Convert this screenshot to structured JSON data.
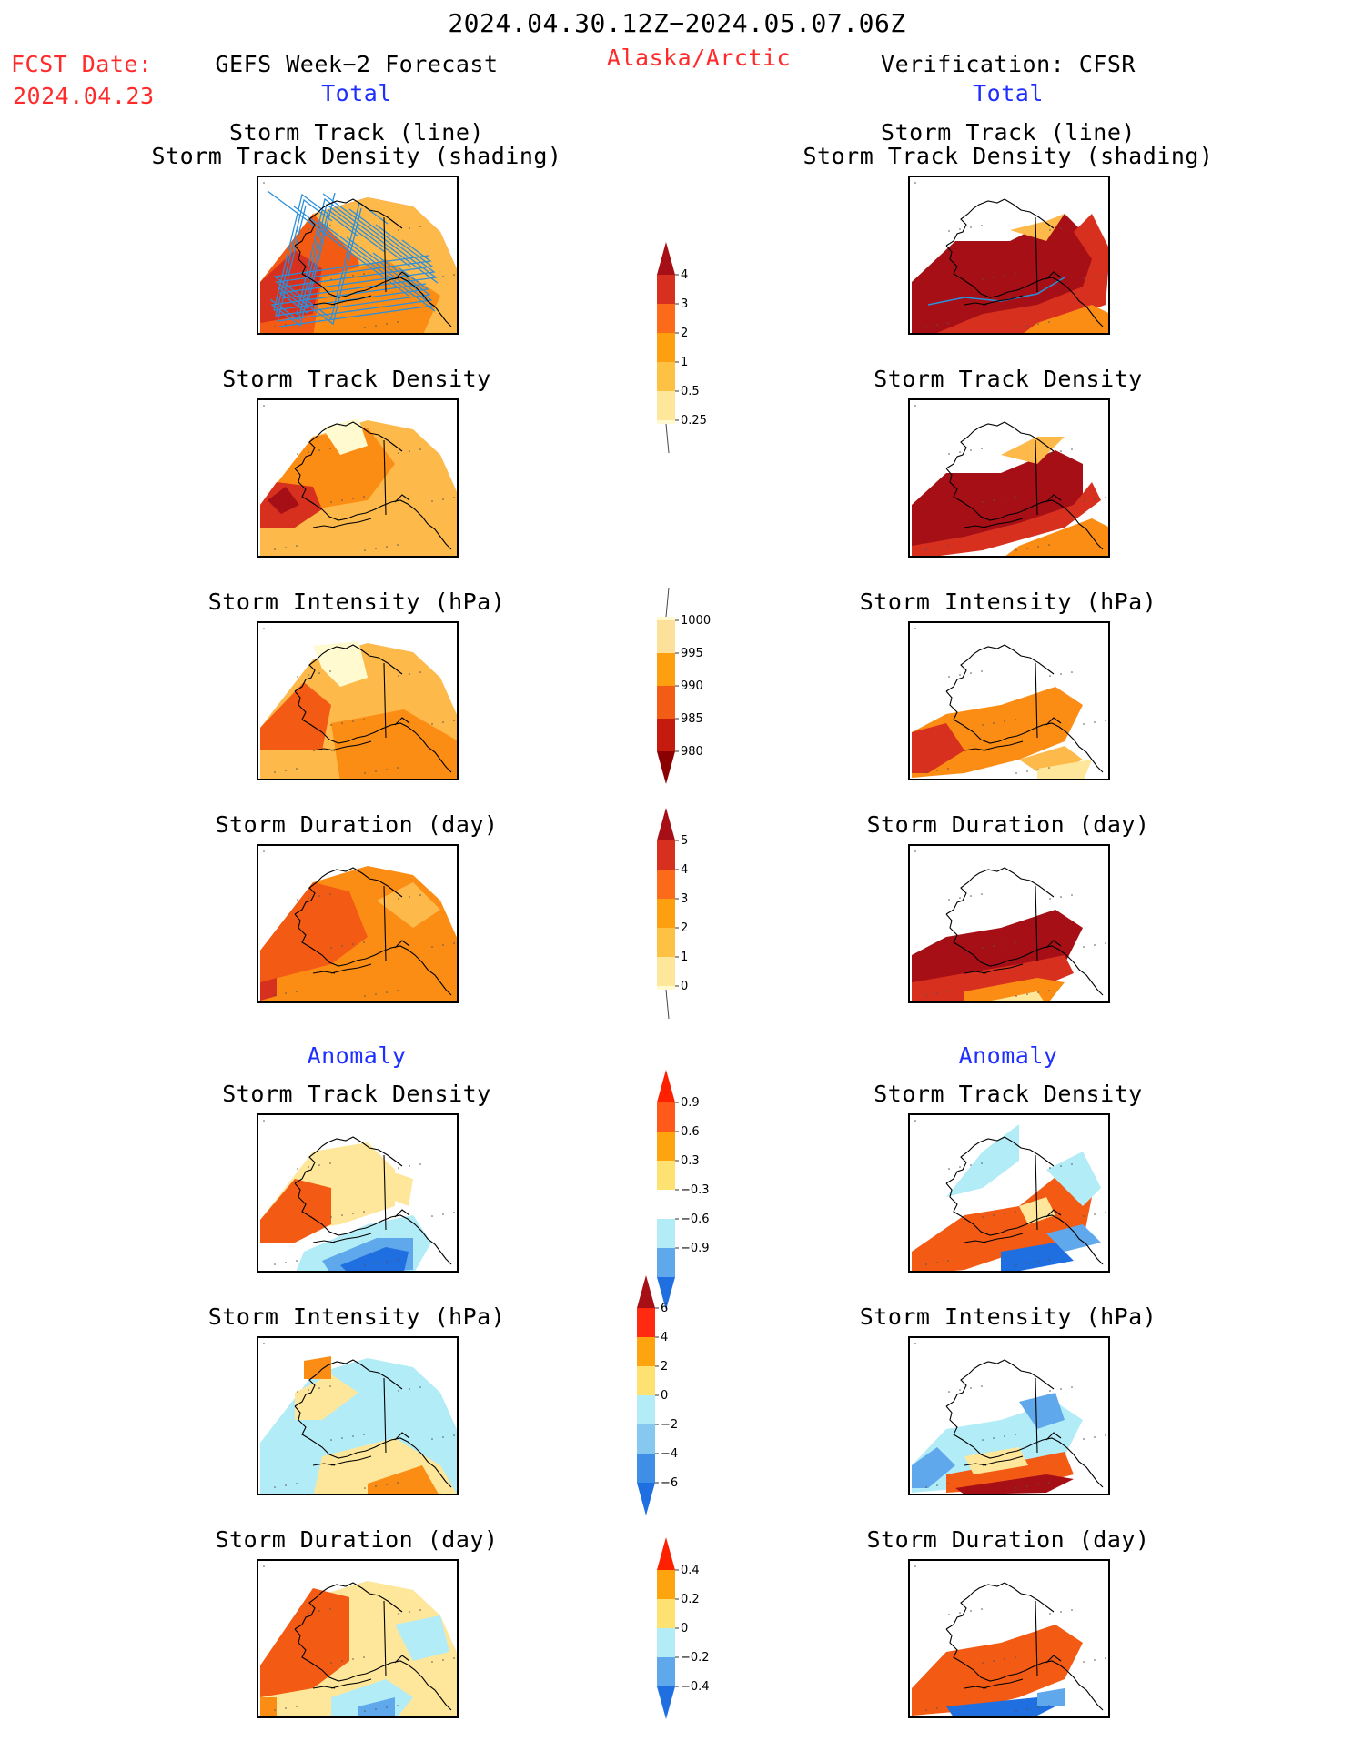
{
  "header": {
    "period": "2024.04.30.12Z−2024.05.07.06Z",
    "fcst_label": "FCST Date:",
    "fcst_date": "2024.04.23",
    "left_title": "GEFS Week−2 Forecast",
    "region": "Alaska/Arctic",
    "right_title": "Verification: CFSR",
    "left_total": "Total",
    "right_total": "Total"
  },
  "sections": {
    "anomaly_left": "Anomaly",
    "anomaly_right": "Anomaly"
  },
  "panel_titles": {
    "track_line": "Storm Track (line)",
    "track_shading": "Storm Track Density (shading)",
    "density": "Storm Track Density",
    "intensity": "Storm Intensity (hPa)",
    "duration": "Storm Duration (day)"
  },
  "colorbars": {
    "density_total": {
      "ticks": [
        "4",
        "3",
        "2",
        "1",
        "0.5",
        "0.25"
      ],
      "colors": [
        "#a50f15",
        "#d7301f",
        "#fc6b1a",
        "#fe9f0f",
        "#fdc144",
        "#fee79a",
        "#fffad0"
      ]
    },
    "intensity_total": {
      "ticks": [
        "1000",
        "995",
        "990",
        "985",
        "980"
      ],
      "colors": [
        "#fffad0",
        "#fde19a",
        "#fe9f0f",
        "#f25c14",
        "#c51b0f",
        "#8b0000"
      ]
    },
    "duration_total": {
      "ticks": [
        "5",
        "4",
        "3",
        "2",
        "1",
        "0"
      ],
      "colors": [
        "#a50f15",
        "#d7301f",
        "#fc6b1a",
        "#fe9f0f",
        "#fdc144",
        "#fee79a",
        "#fffad0"
      ]
    },
    "density_anom": {
      "ticks": [
        "0.9",
        "0.6",
        "0.3",
        "−0.3",
        "−0.6",
        "−0.9"
      ],
      "colors": [
        "#ff2000",
        "#ff5a1a",
        "#fea40f",
        "#fde272",
        "#ffffff",
        "#b2ecf7",
        "#5fa8ec",
        "#1f6fe0"
      ]
    },
    "intensity_anom": {
      "ticks": [
        "6",
        "4",
        "2",
        "0",
        "−2",
        "−4",
        "−6"
      ],
      "colors": [
        "#a50f15",
        "#ff2a10",
        "#fea40f",
        "#fde272",
        "#b2ecf7",
        "#86c8f0",
        "#3f8fe6",
        "#1f6fe0"
      ]
    },
    "duration_anom": {
      "ticks": [
        "0.4",
        "0.2",
        "0",
        "−0.2",
        "−0.4"
      ],
      "colors": [
        "#ff2000",
        "#fea40f",
        "#fde272",
        "#b2ecf7",
        "#5fa8ec",
        "#1f6fe0"
      ]
    }
  },
  "colors": {
    "dark_red": "#a50f15",
    "red": "#d7301f",
    "orange_red": "#f35a14",
    "orange": "#fc8d14",
    "light_orange": "#fdb94a",
    "yellow": "#fee79a",
    "pale": "#fffad0",
    "light_blue": "#b2ecf7",
    "mid_blue": "#5fa8ec",
    "blue": "#1f6fe0",
    "track_line": "#2b8fdc"
  }
}
